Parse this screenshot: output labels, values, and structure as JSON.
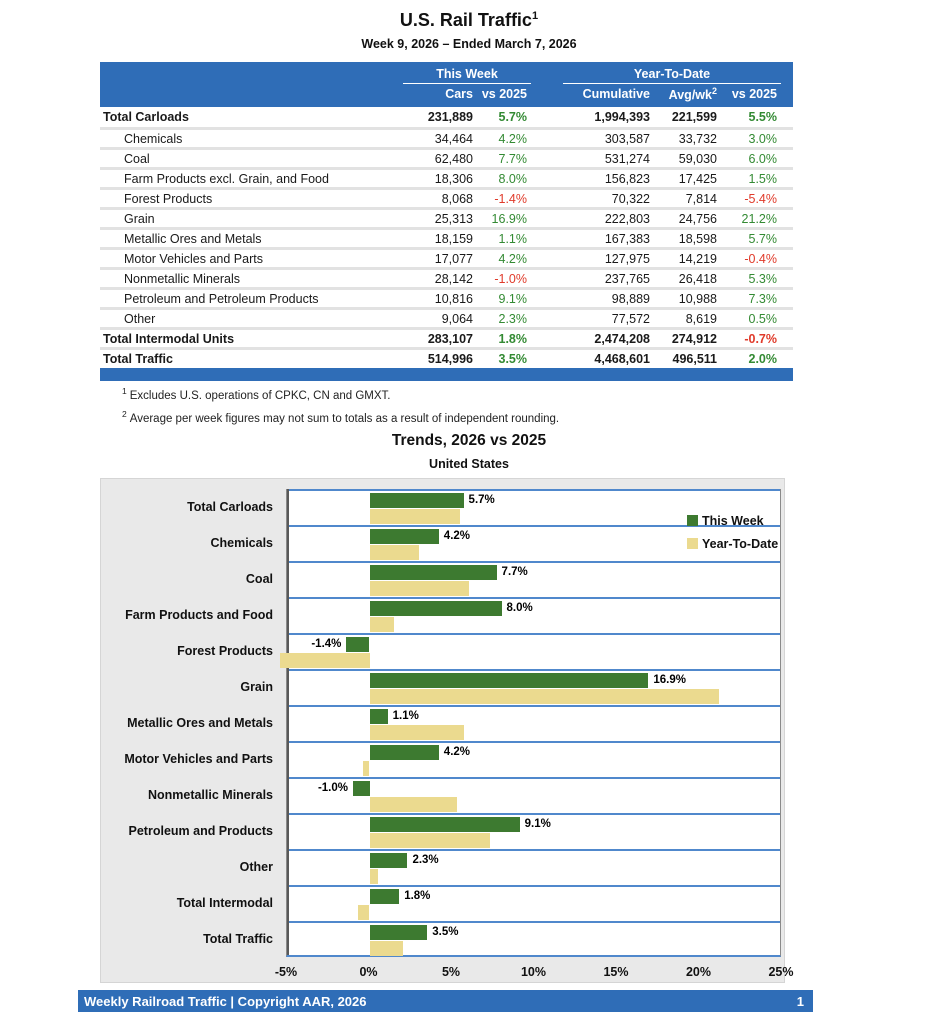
{
  "report": {
    "title": "U.S. Rail Traffic",
    "title_sup": "1",
    "subtitle": "Week 9, 2026 – Ended March 7, 2026"
  },
  "table": {
    "group_headers": {
      "this_week": "This Week",
      "ytd": "Year-To-Date"
    },
    "columns": [
      "Cars",
      "vs 2025",
      "Cumulative",
      "Avg/wk",
      "vs 2025"
    ],
    "avgwk_sup": "2",
    "rows": [
      {
        "label": "Total Carloads",
        "total": true,
        "cars": "231,889",
        "wk_pct": "5.7%",
        "cumulative": "1,994,393",
        "avgwk": "221,599",
        "ytd_pct": "5.5%"
      },
      {
        "label": "Chemicals",
        "total": false,
        "cars": "34,464",
        "wk_pct": "4.2%",
        "cumulative": "303,587",
        "avgwk": "33,732",
        "ytd_pct": "3.0%"
      },
      {
        "label": "Coal",
        "total": false,
        "cars": "62,480",
        "wk_pct": "7.7%",
        "cumulative": "531,274",
        "avgwk": "59,030",
        "ytd_pct": "6.0%"
      },
      {
        "label": "Farm Products excl. Grain, and Food",
        "total": false,
        "cars": "18,306",
        "wk_pct": "8.0%",
        "cumulative": "156,823",
        "avgwk": "17,425",
        "ytd_pct": "1.5%"
      },
      {
        "label": "Forest Products",
        "total": false,
        "cars": "8,068",
        "wk_pct": "-1.4%",
        "cumulative": "70,322",
        "avgwk": "7,814",
        "ytd_pct": "-5.4%"
      },
      {
        "label": "Grain",
        "total": false,
        "cars": "25,313",
        "wk_pct": "16.9%",
        "cumulative": "222,803",
        "avgwk": "24,756",
        "ytd_pct": "21.2%"
      },
      {
        "label": "Metallic Ores and Metals",
        "total": false,
        "cars": "18,159",
        "wk_pct": "1.1%",
        "cumulative": "167,383",
        "avgwk": "18,598",
        "ytd_pct": "5.7%"
      },
      {
        "label": "Motor Vehicles and Parts",
        "total": false,
        "cars": "17,077",
        "wk_pct": "4.2%",
        "cumulative": "127,975",
        "avgwk": "14,219",
        "ytd_pct": "-0.4%"
      },
      {
        "label": "Nonmetallic Minerals",
        "total": false,
        "cars": "28,142",
        "wk_pct": "-1.0%",
        "cumulative": "237,765",
        "avgwk": "26,418",
        "ytd_pct": "5.3%"
      },
      {
        "label": "Petroleum and Petroleum Products",
        "total": false,
        "cars": "10,816",
        "wk_pct": "9.1%",
        "cumulative": "98,889",
        "avgwk": "10,988",
        "ytd_pct": "7.3%"
      },
      {
        "label": "Other",
        "total": false,
        "cars": "9,064",
        "wk_pct": "2.3%",
        "cumulative": "77,572",
        "avgwk": "8,619",
        "ytd_pct": "0.5%"
      },
      {
        "label": "Total Intermodal Units",
        "total": true,
        "cars": "283,107",
        "wk_pct": "1.8%",
        "cumulative": "2,474,208",
        "avgwk": "274,912",
        "ytd_pct": "-0.7%"
      },
      {
        "label": "Total Traffic",
        "total": true,
        "cars": "514,996",
        "wk_pct": "3.5%",
        "cumulative": "4,468,601",
        "avgwk": "496,511",
        "ytd_pct": "2.0%"
      }
    ],
    "positive_color": "#338A33",
    "negative_color": "#E03A2A"
  },
  "footnotes": [
    {
      "sup": "1",
      "text": "Excludes U.S. operations of CPKC, CN and GMXT."
    },
    {
      "sup": "2",
      "text": "Average per week figures may not sum to totals as a result of independent rounding."
    }
  ],
  "chart": {
    "title": "Trends, 2026 vs 2025",
    "subtitle": "United States"
  },
  "chart_data": {
    "type": "bar",
    "orientation": "horizontal",
    "title": "Trends, 2026 vs 2025",
    "subtitle": "United States",
    "categories": [
      "Total Carloads",
      "Chemicals",
      "Coal",
      "Farm Products and Food",
      "Forest Products",
      "Grain",
      "Metallic Ores and Metals",
      "Motor Vehicles and Parts",
      "Nonmetallic Minerals",
      "Petroleum and Products",
      "Other",
      "Total Intermodal",
      "Total Traffic"
    ],
    "series": [
      {
        "name": "This Week",
        "color": "#3D7A30",
        "values": [
          5.7,
          4.2,
          7.7,
          8.0,
          -1.4,
          16.9,
          1.1,
          4.2,
          -1.0,
          9.1,
          2.3,
          1.8,
          3.5
        ]
      },
      {
        "name": "Year-To-Date",
        "color": "#EBDA8F",
        "values": [
          5.5,
          3.0,
          6.0,
          1.5,
          -5.4,
          21.2,
          5.7,
          -0.4,
          5.3,
          7.3,
          0.5,
          -0.7,
          2.0
        ]
      }
    ],
    "data_labels": [
      "5.7%",
      "4.2%",
      "7.7%",
      "8.0%",
      "-1.4%",
      "16.9%",
      "1.1%",
      "4.2%",
      "-1.0%",
      "9.1%",
      "2.3%",
      "1.8%",
      "3.5%"
    ],
    "xlim": [
      -5,
      25
    ],
    "x_ticks": [
      "-5%",
      "0%",
      "5%",
      "10%",
      "15%",
      "20%",
      "25%"
    ],
    "grid": "category-separators",
    "legend_position": "top-right-inside"
  },
  "footer": {
    "text": "Weekly Railroad Traffic | Copyright AAR, 2026",
    "page": "1"
  }
}
